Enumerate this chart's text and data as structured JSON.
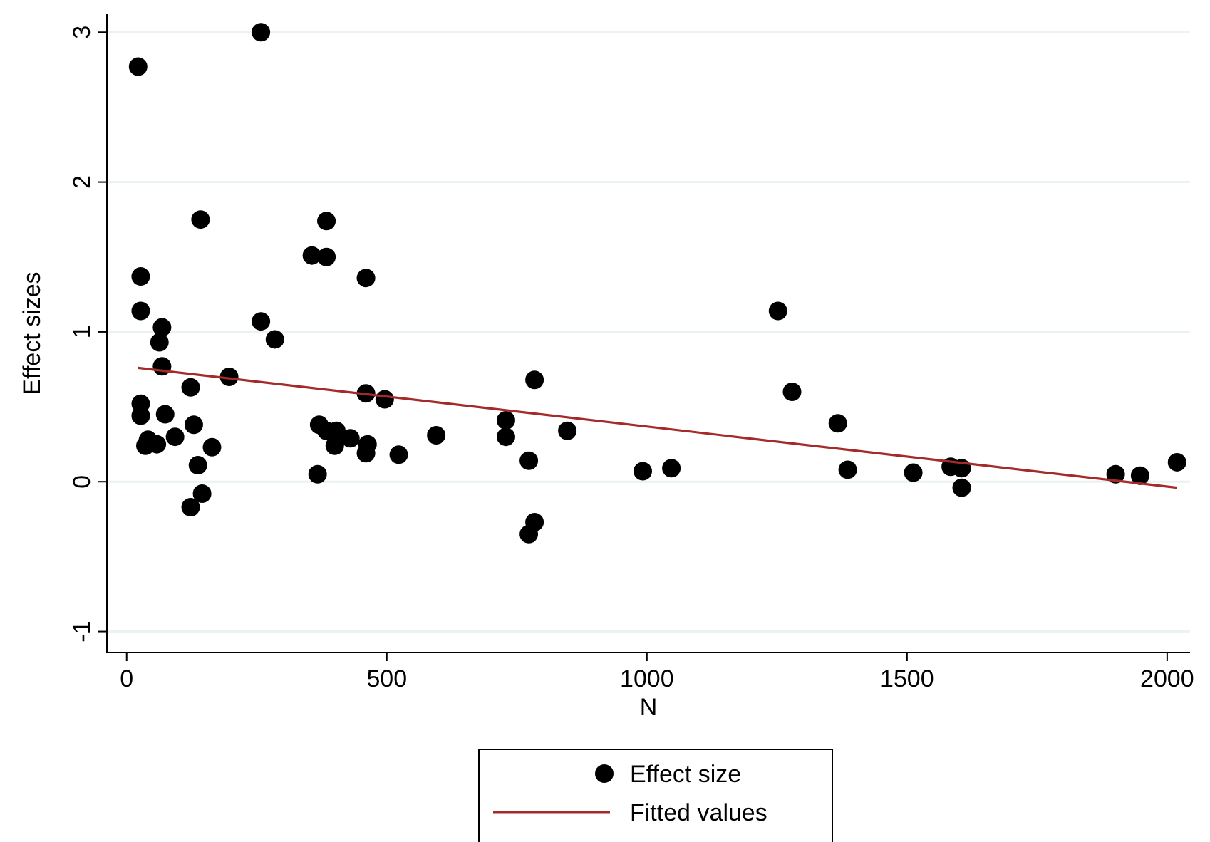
{
  "chart_data": {
    "type": "scatter",
    "xlabel": "N",
    "ylabel": "Effect sizes",
    "xlim": [
      -38,
      2044
    ],
    "ylim": [
      -1.14,
      3.12
    ],
    "xticks": [
      0,
      500,
      1000,
      1500,
      2000
    ],
    "yticks": [
      -1,
      0,
      1,
      2,
      3
    ],
    "grid": "y",
    "legend": "bottom",
    "marker": "circle",
    "series": [
      {
        "name": "Effect size",
        "color": "#000000",
        "x": [
          22,
          258,
          27,
          27,
          68,
          63,
          68,
          27,
          27,
          74,
          36,
          58,
          41,
          93,
          123,
          129,
          137,
          145,
          123,
          142,
          164,
          197,
          258,
          285,
          356,
          384,
          384,
          370,
          367,
          384,
          403,
          400,
          430,
          460,
          460,
          496,
          463,
          460,
          523,
          595,
          729,
          729,
          773,
          784,
          784,
          773,
          847,
          992,
          1047,
          1252,
          1279,
          1367,
          1386,
          1512,
          1584,
          1605,
          1605,
          1901,
          1948,
          2019
        ],
        "values": [
          2.77,
          3.0,
          1.37,
          1.14,
          1.03,
          0.93,
          0.77,
          0.52,
          0.44,
          0.45,
          0.24,
          0.25,
          0.28,
          0.3,
          0.63,
          0.38,
          0.11,
          -0.08,
          -0.17,
          1.75,
          0.23,
          0.7,
          1.07,
          0.95,
          1.51,
          1.74,
          1.5,
          0.38,
          0.05,
          0.34,
          0.34,
          0.24,
          0.29,
          1.36,
          0.59,
          0.55,
          0.25,
          0.19,
          0.18,
          0.31,
          0.41,
          0.3,
          0.14,
          0.68,
          -0.27,
          -0.35,
          0.34,
          0.07,
          0.09,
          1.14,
          0.6,
          0.39,
          0.08,
          0.06,
          0.1,
          0.09,
          -0.04,
          0.05,
          0.04,
          0.13
        ]
      },
      {
        "name": "Fitted values",
        "color": "#a52a2a",
        "type": "line",
        "marker": "none",
        "x": [
          22,
          2019
        ],
        "values": [
          0.76,
          -0.04
        ]
      }
    ]
  }
}
